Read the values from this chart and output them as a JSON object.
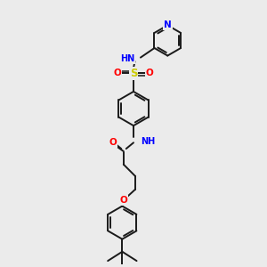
{
  "bg_color": "#ebebeb",
  "bond_color": "#1a1a1a",
  "atom_colors": {
    "N": "#0000ff",
    "O": "#ff0000",
    "S": "#cccc00",
    "H": "#606060",
    "C": "#1a1a1a"
  }
}
